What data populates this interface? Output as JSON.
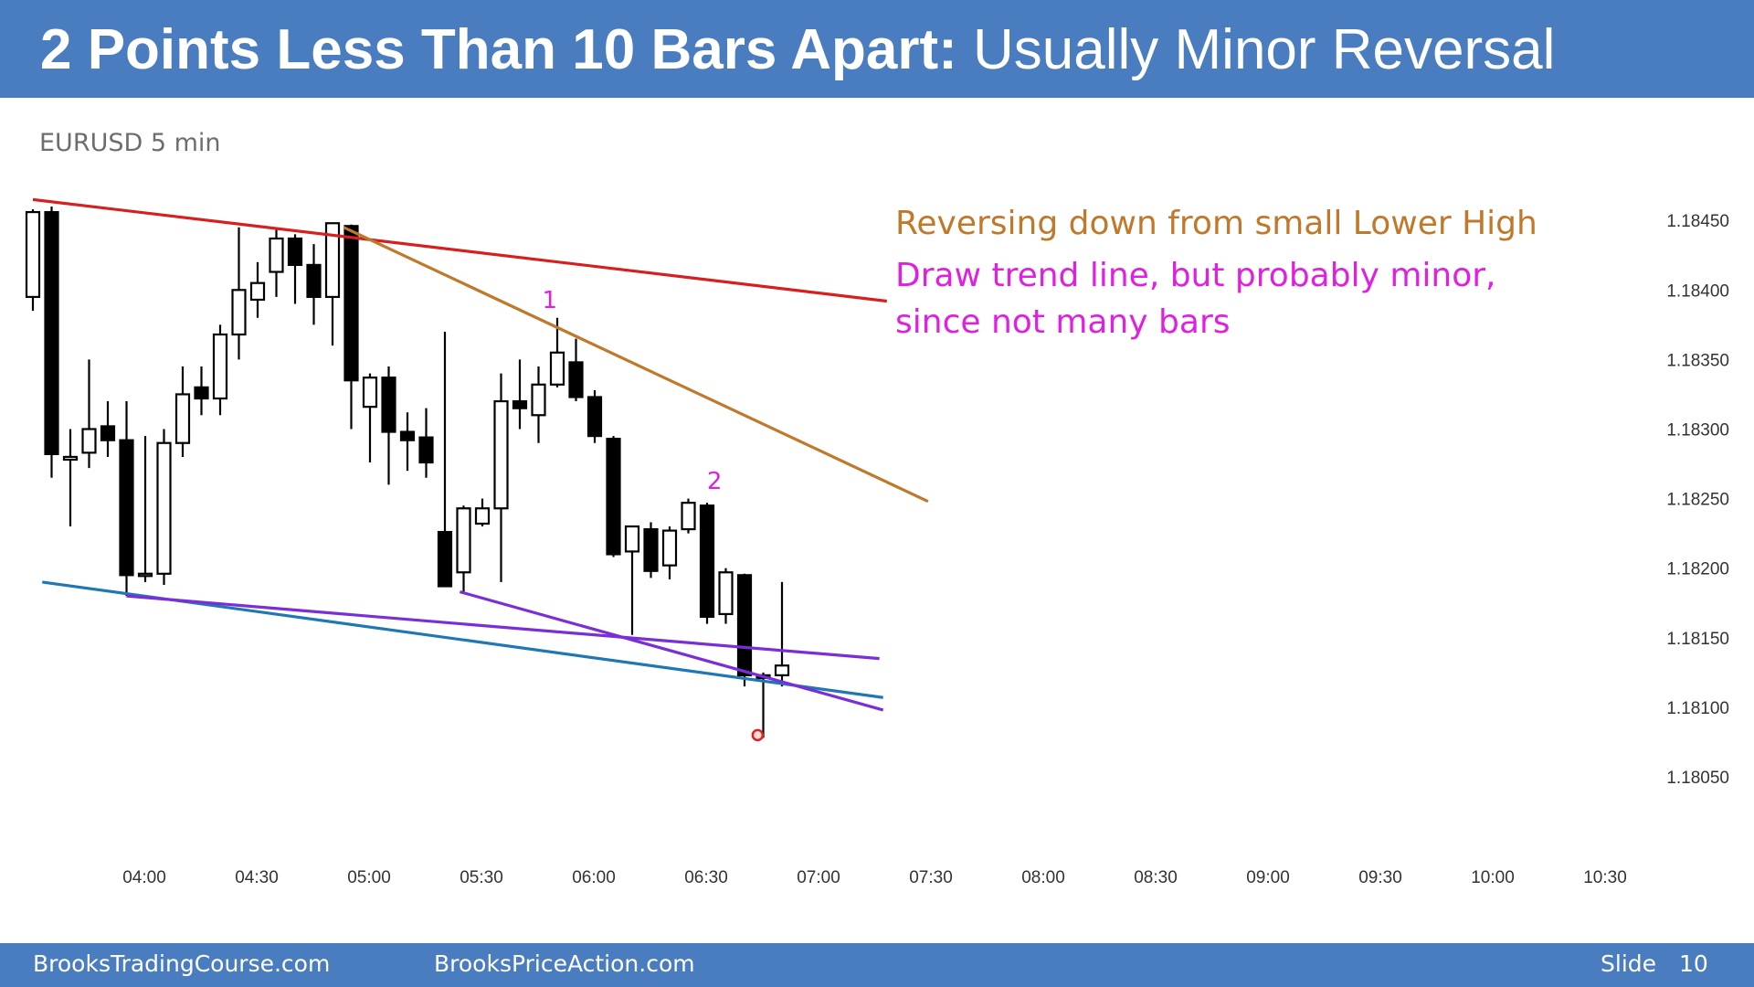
{
  "slide": {
    "title_bold": "2 Points Less Than 10 Bars Apart:",
    "title_rest": " Usually Minor Reversal",
    "symbol": "EURUSD 5 min",
    "note_1": "Reversing down from small Lower High",
    "note_2a": "Draw trend line, but probably minor,",
    "note_2b": "since not many bars",
    "colors": {
      "header": "#4a7cc0",
      "note_1": "#c0782a",
      "note_2": "#e020e0"
    }
  },
  "footer": {
    "site1": "BrooksTradingCourse.com",
    "site2": "BrooksPriceAction.com",
    "slide_label": "Slide",
    "slide_number": "10"
  },
  "chart_data": {
    "type": "candlestick",
    "title": "EURUSD 5 min",
    "bar_minutes": 5,
    "first_bar_time": "03:40",
    "x_ticks": [
      "04:00",
      "04:30",
      "05:00",
      "05:30",
      "06:00",
      "06:30",
      "07:00",
      "07:30",
      "08:00",
      "08:30",
      "09:00",
      "09:30",
      "10:00",
      "10:30"
    ],
    "y_ticks": [
      "1.18050",
      "1.18100",
      "1.18150",
      "1.18200",
      "1.18250",
      "1.18300",
      "1.18350",
      "1.18400",
      "1.18450"
    ],
    "ylim": [
      1.1801,
      1.18465
    ],
    "candles": [
      {
        "o": 1.18395,
        "h": 1.18458,
        "l": 1.18385,
        "c": 1.18456
      },
      {
        "o": 1.18456,
        "h": 1.1846,
        "l": 1.18265,
        "c": 1.18282
      },
      {
        "o": 1.18278,
        "h": 1.183,
        "l": 1.1823,
        "c": 1.1828
      },
      {
        "o": 1.18283,
        "h": 1.1835,
        "l": 1.18272,
        "c": 1.183
      },
      {
        "o": 1.18302,
        "h": 1.1832,
        "l": 1.1828,
        "c": 1.18292
      },
      {
        "o": 1.18292,
        "h": 1.1832,
        "l": 1.1818,
        "c": 1.18195
      },
      {
        "o": 1.18195,
        "h": 1.18295,
        "l": 1.1819,
        "c": 1.18196
      },
      {
        "o": 1.18196,
        "h": 1.183,
        "l": 1.18188,
        "c": 1.1829
      },
      {
        "o": 1.1829,
        "h": 1.18345,
        "l": 1.1828,
        "c": 1.18325
      },
      {
        "o": 1.1833,
        "h": 1.18345,
        "l": 1.1831,
        "c": 1.18322
      },
      {
        "o": 1.18322,
        "h": 1.18375,
        "l": 1.1831,
        "c": 1.18368
      },
      {
        "o": 1.18368,
        "h": 1.18445,
        "l": 1.1835,
        "c": 1.184
      },
      {
        "o": 1.18393,
        "h": 1.1842,
        "l": 1.1838,
        "c": 1.18405
      },
      {
        "o": 1.18413,
        "h": 1.18445,
        "l": 1.18395,
        "c": 1.18437
      },
      {
        "o": 1.18437,
        "h": 1.1844,
        "l": 1.1839,
        "c": 1.18418
      },
      {
        "o": 1.18418,
        "h": 1.18433,
        "l": 1.18375,
        "c": 1.18395
      },
      {
        "o": 1.18395,
        "h": 1.18447,
        "l": 1.1836,
        "c": 1.18448
      },
      {
        "o": 1.18446,
        "h": 1.18447,
        "l": 1.183,
        "c": 1.18335
      },
      {
        "o": 1.18316,
        "h": 1.1834,
        "l": 1.18276,
        "c": 1.18337
      },
      {
        "o": 1.18337,
        "h": 1.18345,
        "l": 1.1826,
        "c": 1.18298
      },
      {
        "o": 1.18298,
        "h": 1.18312,
        "l": 1.1827,
        "c": 1.18292
      },
      {
        "o": 1.18294,
        "h": 1.18315,
        "l": 1.18265,
        "c": 1.18276
      },
      {
        "o": 1.18226,
        "h": 1.1837,
        "l": 1.18187,
        "c": 1.18187
      },
      {
        "o": 1.18197,
        "h": 1.18245,
        "l": 1.18182,
        "c": 1.18243
      },
      {
        "o": 1.18232,
        "h": 1.1825,
        "l": 1.1823,
        "c": 1.18243
      },
      {
        "o": 1.18243,
        "h": 1.1834,
        "l": 1.1819,
        "c": 1.1832
      },
      {
        "o": 1.1832,
        "h": 1.1835,
        "l": 1.183,
        "c": 1.18315
      },
      {
        "o": 1.1831,
        "h": 1.18345,
        "l": 1.1829,
        "c": 1.18332
      },
      {
        "o": 1.18332,
        "h": 1.1838,
        "l": 1.1833,
        "c": 1.18355
      },
      {
        "o": 1.18348,
        "h": 1.18365,
        "l": 1.1832,
        "c": 1.18323
      },
      {
        "o": 1.18323,
        "h": 1.18328,
        "l": 1.1829,
        "c": 1.18295
      },
      {
        "o": 1.18293,
        "h": 1.18295,
        "l": 1.18208,
        "c": 1.1821
      },
      {
        "o": 1.18212,
        "h": 1.1823,
        "l": 1.18152,
        "c": 1.1823
      },
      {
        "o": 1.18228,
        "h": 1.18233,
        "l": 1.18193,
        "c": 1.18198
      },
      {
        "o": 1.18202,
        "h": 1.1823,
        "l": 1.18192,
        "c": 1.18227
      },
      {
        "o": 1.18228,
        "h": 1.1825,
        "l": 1.18225,
        "c": 1.18247
      },
      {
        "o": 1.18245,
        "h": 1.18247,
        "l": 1.1816,
        "c": 1.18165
      },
      {
        "o": 1.18167,
        "h": 1.182,
        "l": 1.1816,
        "c": 1.18197
      },
      {
        "o": 1.18195,
        "h": 1.18196,
        "l": 1.18115,
        "c": 1.18123
      },
      {
        "o": 1.18123,
        "h": 1.18125,
        "l": 1.18078,
        "c": 1.18121
      },
      {
        "o": 1.18123,
        "h": 1.1819,
        "l": 1.18115,
        "c": 1.1813
      }
    ],
    "trend_lines": [
      {
        "name": "red",
        "color": "#d62020",
        "from": {
          "bar": 0,
          "price": 1.18465
        },
        "to": {
          "bar": 45.6,
          "price": 1.18392
        }
      },
      {
        "name": "orange",
        "color": "#c0782a",
        "from": {
          "bar": 16.6,
          "price": 1.18445
        },
        "to": {
          "bar": 47.8,
          "price": 1.18248
        }
      },
      {
        "name": "blue",
        "color": "#1f78b4",
        "from": {
          "bar": 0.5,
          "price": 1.1819
        },
        "to": {
          "bar": 45.4,
          "price": 1.18107
        }
      },
      {
        "name": "purple-1",
        "color": "#7a2ed8",
        "from": {
          "bar": 5,
          "price": 1.1818
        },
        "to": {
          "bar": 45.2,
          "price": 1.18135
        }
      },
      {
        "name": "purple-2",
        "color": "#7a2ed8",
        "from": {
          "bar": 22.8,
          "price": 1.18183
        },
        "to": {
          "bar": 45.4,
          "price": 1.18098
        }
      }
    ],
    "labels": [
      {
        "text": "1",
        "bar": 27.6,
        "price": 1.18387,
        "color": "#e020e0"
      },
      {
        "text": "2",
        "bar": 36.4,
        "price": 1.18257,
        "color": "#e020e0"
      }
    ],
    "markers": [
      {
        "name": "red-dot",
        "bar": 38.7,
        "price": 1.1808,
        "color": "#e02020"
      }
    ]
  }
}
